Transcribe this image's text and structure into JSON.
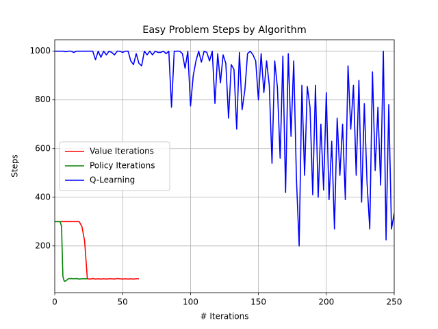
{
  "chart_data": {
    "type": "line",
    "title": "Easy Problem Steps by Algorithm",
    "xlabel": "# Iterations",
    "ylabel": "Steps",
    "xlim": [
      0,
      250
    ],
    "xticks": [
      0,
      50,
      100,
      150,
      200,
      250
    ],
    "ylim": [
      8,
      1047
    ],
    "yticks": [
      200,
      400,
      600,
      800,
      1000
    ],
    "grid": true,
    "legend": "center left",
    "series": [
      {
        "name": "Value Iterations",
        "color": "#ff0000",
        "x": [
          0,
          2,
          4,
          6,
          8,
          10,
          12,
          14,
          16,
          18,
          20,
          22,
          24,
          26,
          28,
          30,
          32,
          34,
          36,
          38,
          40,
          42,
          44,
          46,
          48,
          50,
          52,
          54,
          56,
          58,
          60,
          62
        ],
        "values": [
          300,
          300,
          300,
          300,
          300,
          300,
          300,
          300,
          300,
          300,
          280,
          220,
          65,
          64,
          66,
          64,
          65,
          64,
          65,
          64,
          65,
          65,
          64,
          66,
          65,
          64,
          65,
          64,
          65,
          64,
          65,
          65
        ]
      },
      {
        "name": "Policy Iterations",
        "color": "#008000",
        "x": [
          0,
          2,
          4,
          5,
          6,
          7,
          8,
          10,
          12,
          14,
          16,
          18,
          20,
          22,
          24
        ],
        "values": [
          300,
          300,
          300,
          280,
          75,
          55,
          56,
          65,
          66,
          65,
          66,
          64,
          65,
          65,
          65
        ]
      },
      {
        "name": "Q-Learning",
        "color": "#0000ff",
        "x": [
          0,
          2,
          4,
          6,
          8,
          10,
          12,
          14,
          16,
          18,
          20,
          22,
          24,
          26,
          28,
          30,
          32,
          34,
          36,
          38,
          40,
          42,
          44,
          46,
          48,
          50,
          52,
          54,
          56,
          58,
          60,
          62,
          64,
          66,
          68,
          70,
          72,
          74,
          76,
          78,
          80,
          82,
          84,
          86,
          88,
          90,
          92,
          94,
          96,
          98,
          100,
          102,
          104,
          106,
          108,
          110,
          112,
          114,
          116,
          118,
          120,
          122,
          124,
          126,
          128,
          130,
          132,
          134,
          136,
          138,
          140,
          142,
          144,
          146,
          148,
          150,
          152,
          154,
          156,
          158,
          160,
          162,
          164,
          166,
          168,
          170,
          172,
          174,
          176,
          178,
          180,
          182,
          184,
          186,
          188,
          190,
          192,
          194,
          196,
          198,
          200,
          202,
          204,
          206,
          208,
          210,
          212,
          214,
          216,
          218,
          220,
          222,
          224,
          226,
          228,
          230,
          232,
          234,
          236,
          238,
          240,
          242,
          244,
          246,
          248,
          250
        ],
        "values": [
          1000,
          1000,
          1000,
          1000,
          998,
          1000,
          1000,
          995,
          1000,
          1000,
          1000,
          1000,
          1000,
          1000,
          1000,
          965,
          1000,
          975,
          1000,
          985,
          1000,
          995,
          985,
          1000,
          1000,
          995,
          1000,
          1000,
          960,
          945,
          990,
          950,
          940,
          1000,
          985,
          1000,
          985,
          1000,
          995,
          995,
          1000,
          990,
          1000,
          770,
          1000,
          1000,
          1000,
          990,
          930,
          1000,
          775,
          900,
          960,
          1000,
          955,
          1000,
          995,
          960,
          1000,
          785,
          990,
          870,
          985,
          950,
          725,
          945,
          925,
          680,
          995,
          760,
          840,
          990,
          1000,
          985,
          960,
          800,
          990,
          830,
          960,
          860,
          540,
          960,
          850,
          560,
          980,
          420,
          990,
          650,
          960,
          475,
          200,
          860,
          490,
          855,
          770,
          410,
          860,
          400,
          700,
          430,
          830,
          390,
          630,
          270,
          725,
          490,
          700,
          390,
          940,
          680,
          860,
          490,
          880,
          380,
          785,
          460,
          270,
          915,
          510,
          770,
          450,
          1000,
          225,
          780,
          270,
          335
        ]
      }
    ]
  }
}
